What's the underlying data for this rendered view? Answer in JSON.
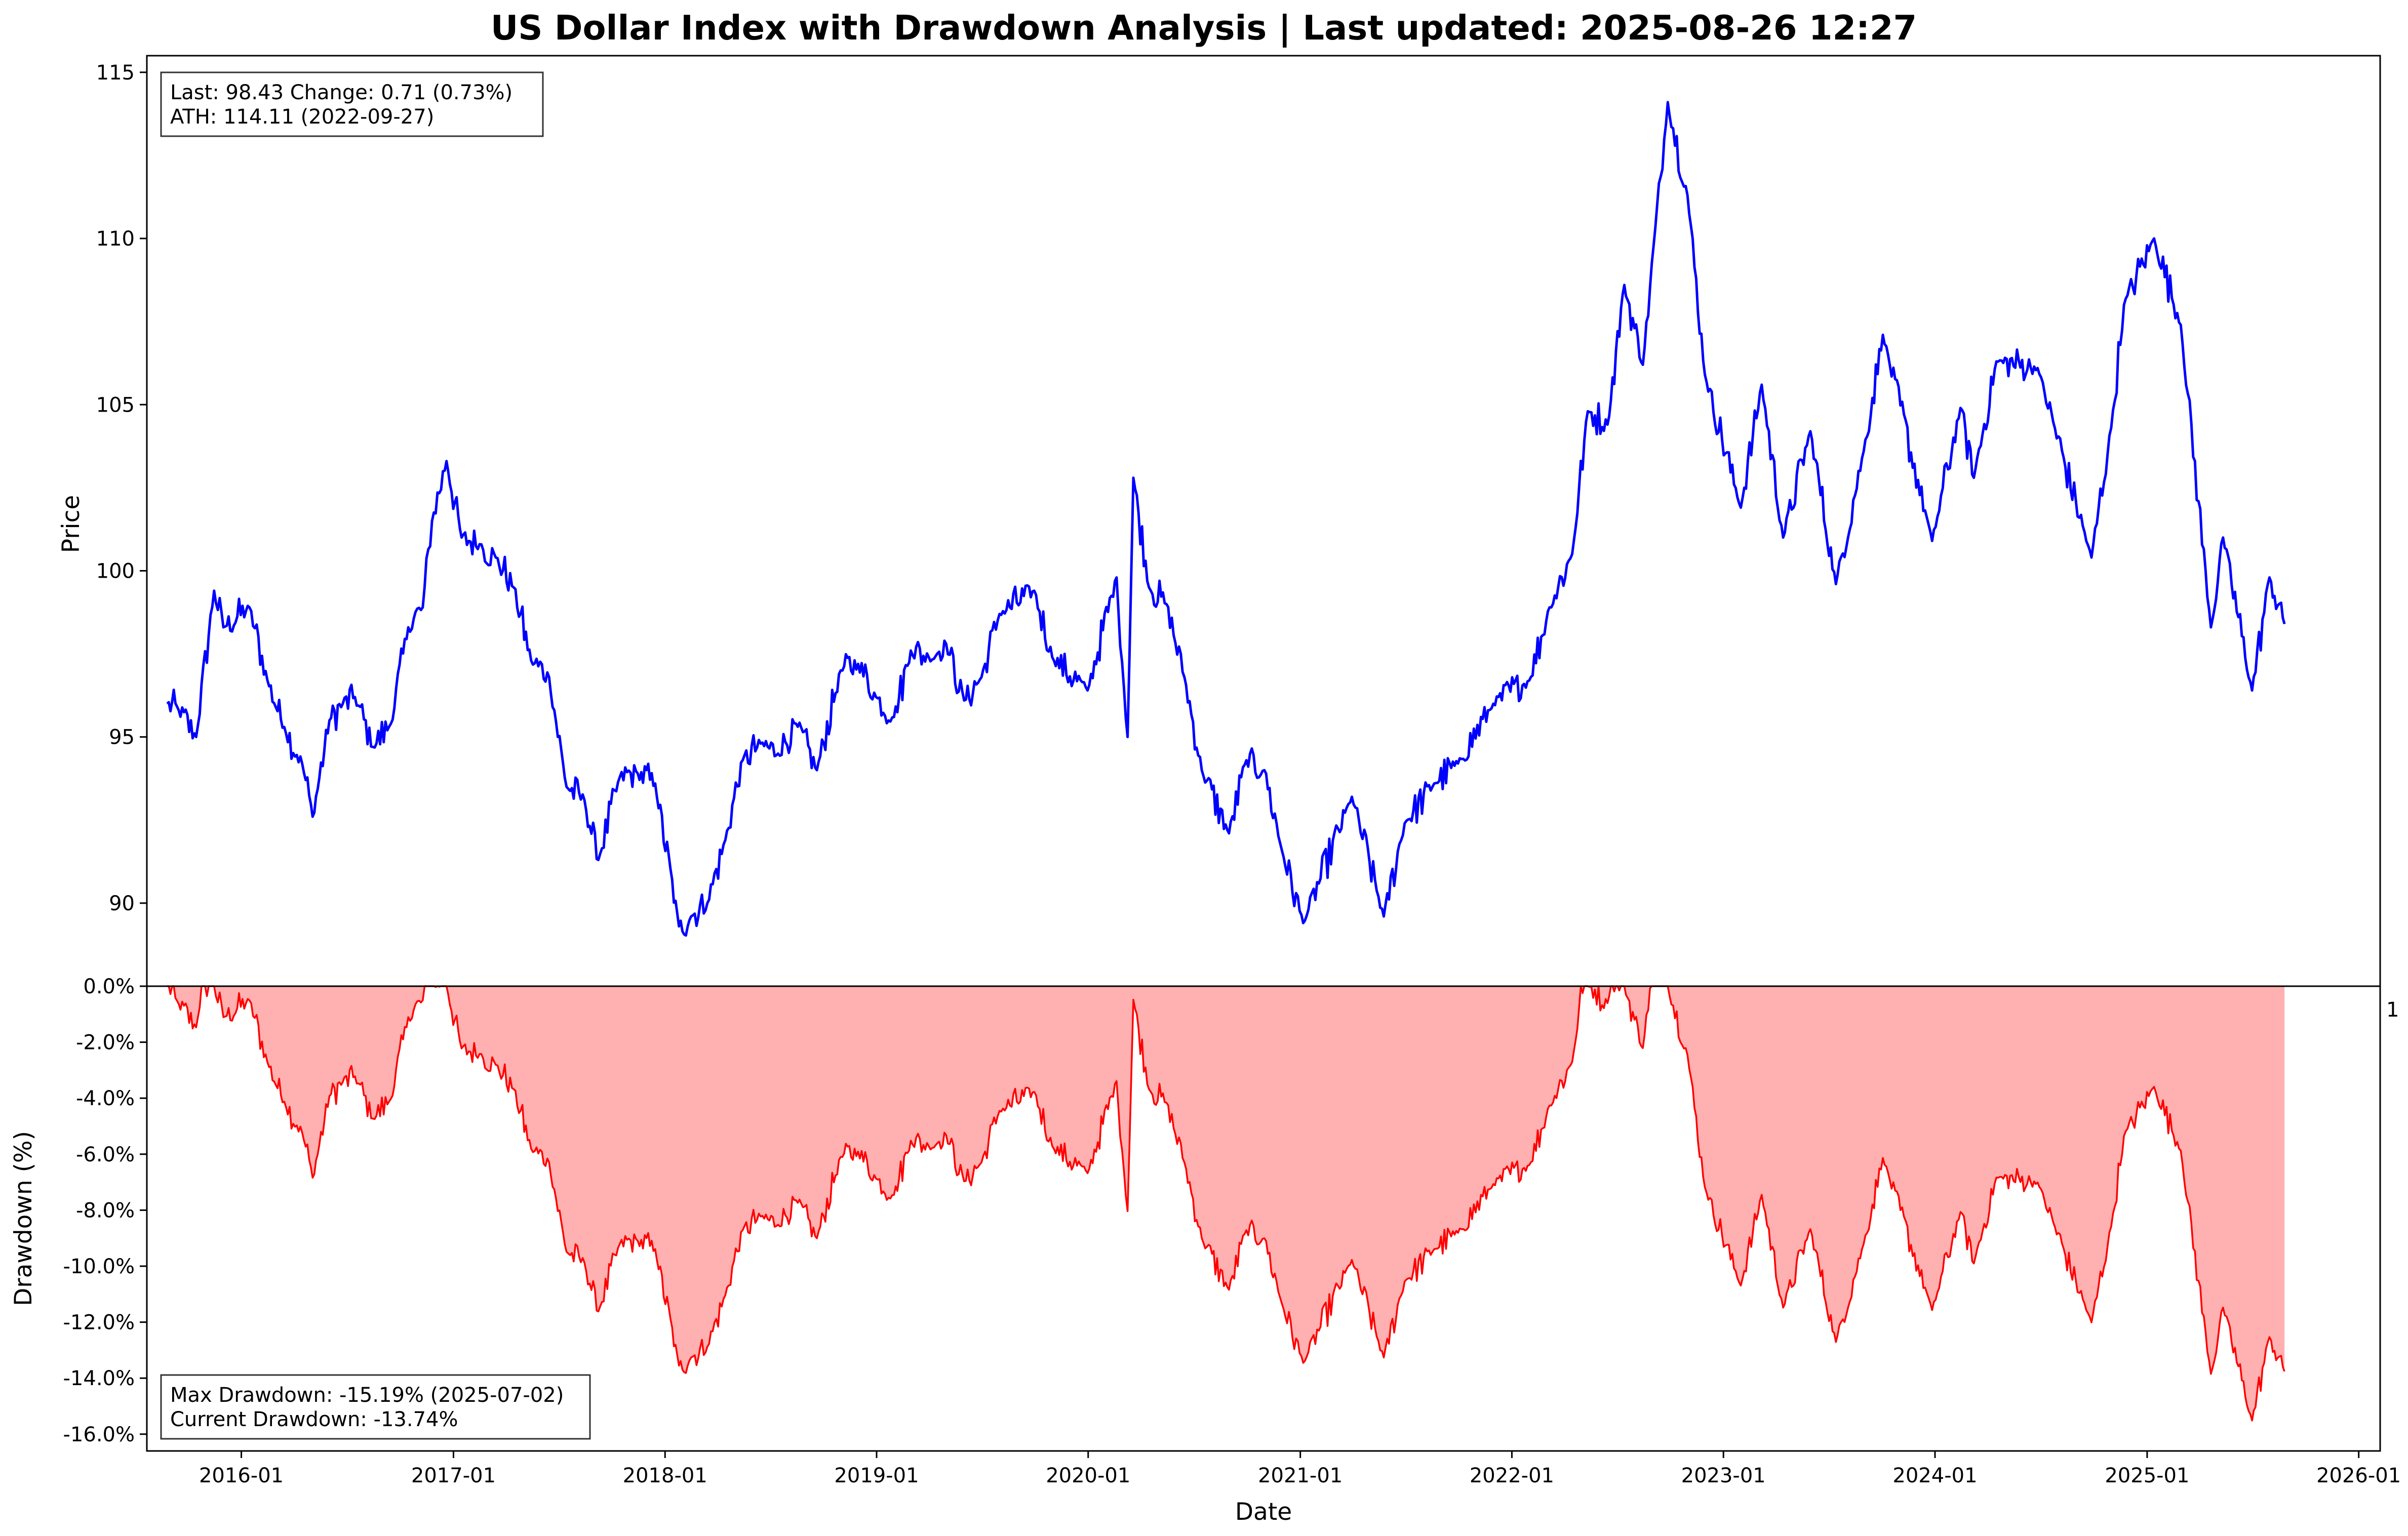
{
  "chart_data": {
    "type": "line",
    "title": "US Dollar Index with Drawdown Analysis | Last updated: 2025-08-26 12:27",
    "xlabel": "Date",
    "x_ticks": [
      "2016-01",
      "2017-01",
      "2018-01",
      "2019-01",
      "2020-01",
      "2021-01",
      "2022-01",
      "2023-01",
      "2024-01",
      "2025-01",
      "2026-01"
    ],
    "stray_label": "1",
    "price_panel": {
      "ylabel": "Price",
      "ylim": [
        87.5,
        115.5
      ],
      "y_ticks": [
        90,
        95,
        100,
        105,
        110,
        115
      ],
      "line_color": "#0000ff",
      "info": {
        "line1": "Last: 98.43  Change: 0.71 (0.73%)",
        "line2": "ATH: 114.11 (2022-09-27)"
      },
      "series": [
        {
          "x": [
            "2015-08-26",
            "2015-09-15",
            "2015-10-15",
            "2015-11-15",
            "2015-12-01",
            "2016-01-15",
            "2016-02-15",
            "2016-03-15",
            "2016-04-15",
            "2016-05-03",
            "2016-06-01",
            "2016-06-24",
            "2016-07-15",
            "2016-08-15",
            "2016-09-15",
            "2016-10-15",
            "2016-11-09",
            "2016-11-25",
            "2016-12-20",
            "2017-01-15",
            "2017-02-15",
            "2017-03-15",
            "2017-04-15",
            "2017-05-15",
            "2017-06-15",
            "2017-07-15",
            "2017-08-15",
            "2017-09-08",
            "2017-10-15",
            "2017-11-15",
            "2017-12-15",
            "2018-01-25",
            "2018-02-15",
            "2018-03-15",
            "2018-04-15",
            "2018-05-15",
            "2018-06-15",
            "2018-07-15",
            "2018-08-15",
            "2018-09-20",
            "2018-10-31",
            "2018-11-30",
            "2018-12-31",
            "2019-01-31",
            "2019-03-01",
            "2019-04-01",
            "2019-05-01",
            "2019-06-01",
            "2019-07-01",
            "2019-08-01",
            "2019-09-30",
            "2019-10-31",
            "2019-12-31",
            "2020-02-19",
            "2020-03-09",
            "2020-03-19",
            "2020-04-15",
            "2020-05-15",
            "2020-06-15",
            "2020-07-15",
            "2020-08-31",
            "2020-09-30",
            "2020-10-31",
            "2020-11-30",
            "2021-01-06",
            "2021-03-31",
            "2021-05-25",
            "2021-06-30",
            "2021-08-20",
            "2021-09-30",
            "2021-11-30",
            "2022-01-31",
            "2022-03-07",
            "2022-04-15",
            "2022-05-12",
            "2022-06-15",
            "2022-07-14",
            "2022-08-15",
            "2022-09-27",
            "2022-10-31",
            "2022-11-30",
            "2023-01-31",
            "2023-03-08",
            "2023-04-14",
            "2023-05-31",
            "2023-07-14",
            "2023-08-31",
            "2023-10-03",
            "2023-12-27",
            "2024-02-14",
            "2024-03-08",
            "2024-04-16",
            "2024-06-26",
            "2024-09-27",
            "2024-10-31",
            "2024-11-22",
            "2025-01-13",
            "2025-02-28",
            "2025-04-21",
            "2025-05-12",
            "2025-07-01",
            "2025-07-31",
            "2025-08-26"
          ],
          "values": [
            96.0,
            95.8,
            95.0,
            99.4,
            98.3,
            98.9,
            96.7,
            95.3,
            94.2,
            92.6,
            95.5,
            96.0,
            96.2,
            94.7,
            95.4,
            98.3,
            98.9,
            101.5,
            103.3,
            101.0,
            100.8,
            100.4,
            99.5,
            97.3,
            96.8,
            93.5,
            93.1,
            91.3,
            93.8,
            93.9,
            93.6,
            89.3,
            89.6,
            90.0,
            91.9,
            94.3,
            94.8,
            94.5,
            95.4,
            94.0,
            97.0,
            97.2,
            96.2,
            95.6,
            97.6,
            97.4,
            97.8,
            96.1,
            96.8,
            98.7,
            99.4,
            97.4,
            96.4,
            99.8,
            95.0,
            102.8,
            99.5,
            99.0,
            96.8,
            94.0,
            92.1,
            94.3,
            94.0,
            91.6,
            89.4,
            93.2,
            89.6,
            92.4,
            93.6,
            94.2,
            96.0,
            96.7,
            98.9,
            100.5,
            104.8,
            104.4,
            108.6,
            106.2,
            114.1,
            111.3,
            105.9,
            101.9,
            105.6,
            101.0,
            104.2,
            99.6,
            103.6,
            107.1,
            100.9,
            104.9,
            102.8,
            106.3,
            106.1,
            100.4,
            104.3,
            108.0,
            110.0,
            107.4,
            98.3,
            101.0,
            96.4,
            99.8,
            98.4
          ]
        }
      ]
    },
    "drawdown_panel": {
      "ylabel": "Drawdown (%)",
      "ylim": [
        -16.6,
        0
      ],
      "y_ticks": [
        0,
        -2,
        -4,
        -6,
        -8,
        -10,
        -12,
        -14,
        -16
      ],
      "y_tick_labels": [
        "0.0%",
        "-2.0%",
        "-4.0%",
        "-6.0%",
        "-8.0%",
        "-10.0%",
        "-12.0%",
        "-14.0%",
        "-16.0%"
      ],
      "line_color": "#ff0000",
      "fill_color": "#ffb0b0",
      "info": {
        "line1": "Max Drawdown: -15.19% (2025-07-02)",
        "line2": "Current Drawdown: -13.74%"
      }
    }
  }
}
